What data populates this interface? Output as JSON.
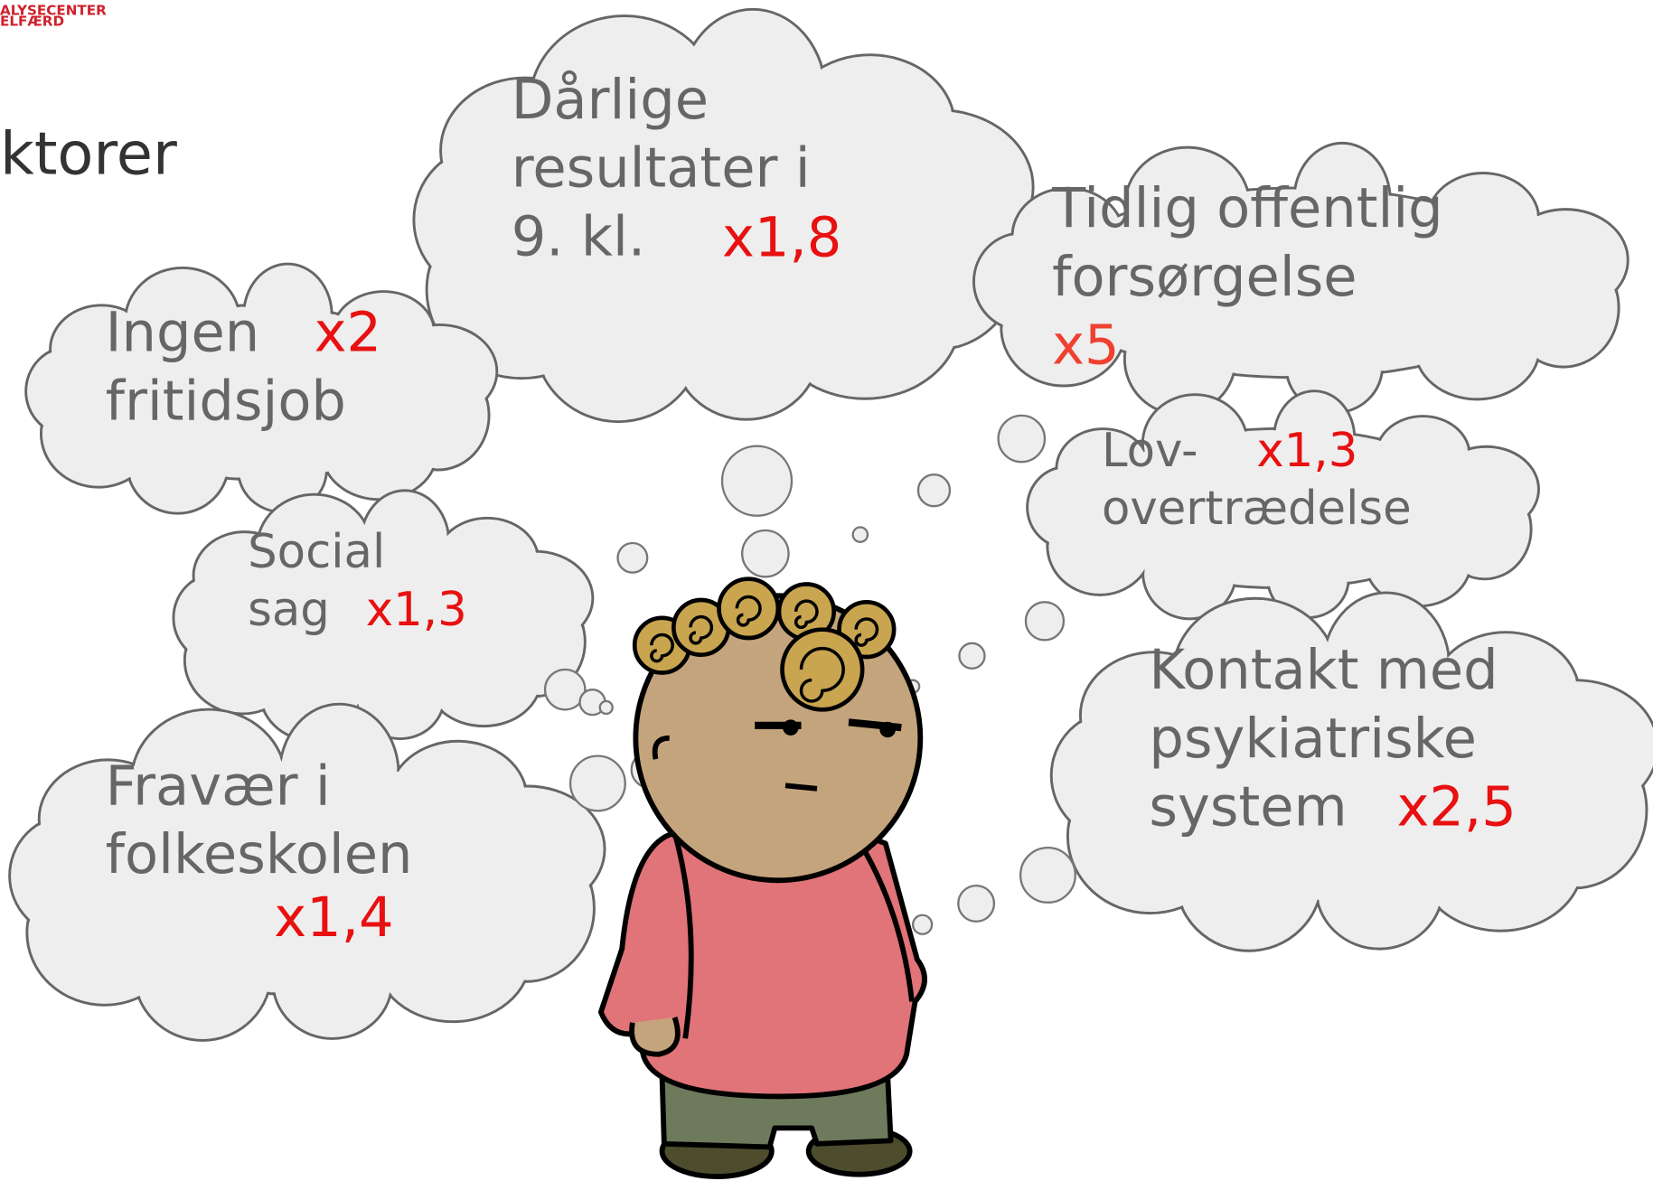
{
  "logo": {
    "line1": "ALYSECENTER",
    "line2": "ELFÆRD"
  },
  "title": "ktorer",
  "clouds": [
    {
      "lines": [
        "Dårlige",
        "resultater i",
        "9. kl."
      ],
      "factor": "x1,8"
    },
    {
      "lines": [
        "Tidlig offentlig",
        "forsørgelse"
      ],
      "factor": "x5"
    },
    {
      "lines": [
        "Ingen",
        "fritidsjob"
      ],
      "factor": "x2"
    },
    {
      "lines": [
        "Social",
        "sag"
      ],
      "factor": "x1,3"
    },
    {
      "lines": [
        "Lov-",
        "overtrædelse"
      ],
      "factor": "x1,3"
    },
    {
      "lines": [
        "Fravær i",
        "folkeskolen"
      ],
      "factor": "x1,4"
    },
    {
      "lines": [
        "Kontakt med",
        "psykiatriske",
        "system"
      ],
      "factor": "x2,5"
    }
  ]
}
